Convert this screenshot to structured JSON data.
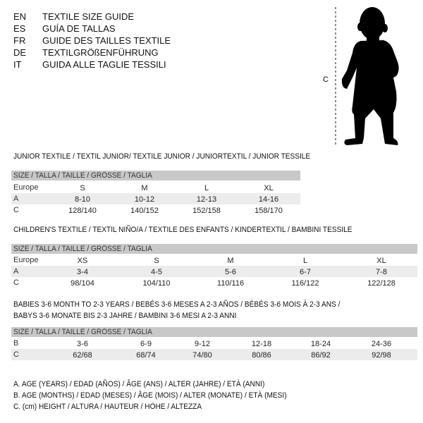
{
  "header": [
    {
      "code": "EN",
      "text": "TEXTILE SIZE GUIDE"
    },
    {
      "code": "ES",
      "text": "GUÍA DE TALLAS"
    },
    {
      "code": "FR",
      "text": "GUIDE DES TAILLES TEXTILE"
    },
    {
      "code": "DE",
      "text": "TEXTILGRÖßENFÜHRUNG"
    },
    {
      "code": "IT",
      "text": "GUIDA ALLE TAGLIE TESSILI"
    }
  ],
  "figure": {
    "measure_label": "C",
    "icon": "baby-silhouette-icon"
  },
  "size_header": "SIZE / TALLA / TAILLE / GRÖSSE / TAGLIA",
  "junior": {
    "title": "JUNIOR TEXTILE / TEXTIL JUNIOR/ TEXTILE JUNIOR / JUNIORTEXTIL / JUNIOR TESSILE",
    "rows": [
      {
        "label": "Europe",
        "values": [
          "S",
          "M",
          "L",
          "XL"
        ]
      },
      {
        "label": "A",
        "values": [
          "8-10",
          "10-12",
          "12-13",
          "14-16"
        ]
      },
      {
        "label": "C",
        "values": [
          "128/140",
          "140/152",
          "152/158",
          "158/170"
        ]
      }
    ]
  },
  "children": {
    "title": "CHILDREN'S TEXTILE / TEXTIL NIÑO/A / TEXTILE DES ENFANTS / KINDERTEXTIL / BAMBINI TESSILE",
    "rows": [
      {
        "label": "Europe",
        "values": [
          "XS",
          "S",
          "M",
          "L",
          "XL"
        ]
      },
      {
        "label": "A",
        "values": [
          "3-4",
          "4-5",
          "5-6",
          "6-7",
          "7-8"
        ]
      },
      {
        "label": "C",
        "values": [
          "98/104",
          "104/110",
          "110/116",
          "116/122",
          "122/128"
        ]
      }
    ]
  },
  "babies": {
    "title_line1": "BABIES 3-6 MONTH TO 2-3 YEARS / BEBÉS 3-6 MESES A 2-3 AÑOS / BÉBÉS 3-6 MOIS À 2-3 ANS /",
    "title_line2": "BABYS 3-6 MONATE BIS 2-3 JAHRE / BAMBINI 3-6 MESI A 2-3 ANNI",
    "rows": [
      {
        "label": "B",
        "values": [
          "3-6",
          "6-9",
          "9-12",
          "12-18",
          "18-24",
          "24-36"
        ]
      },
      {
        "label": "C",
        "values": [
          "62/68",
          "68/74",
          "74/80",
          "80/86",
          "86/92",
          "92/98"
        ]
      }
    ]
  },
  "legend": [
    "A. AGE (YEARS) / EDAD (AÑOS) / ÂGE (ANS) / ALTER (JAHRE) / ETÀ (ANNI)",
    "B. AGE (MONTHS) / EDAD (MESES) / ÂGE (MOIS) / ALTER (MONATE) / ETÀ (MESI)",
    "C. (cm) HEIGHT / ALTURA / HAUTEUR / HÖHE / ALTEZZA"
  ],
  "colors": {
    "header_bar": "#c8c8c8",
    "row_shade": "#ececec",
    "text": "#111111"
  }
}
